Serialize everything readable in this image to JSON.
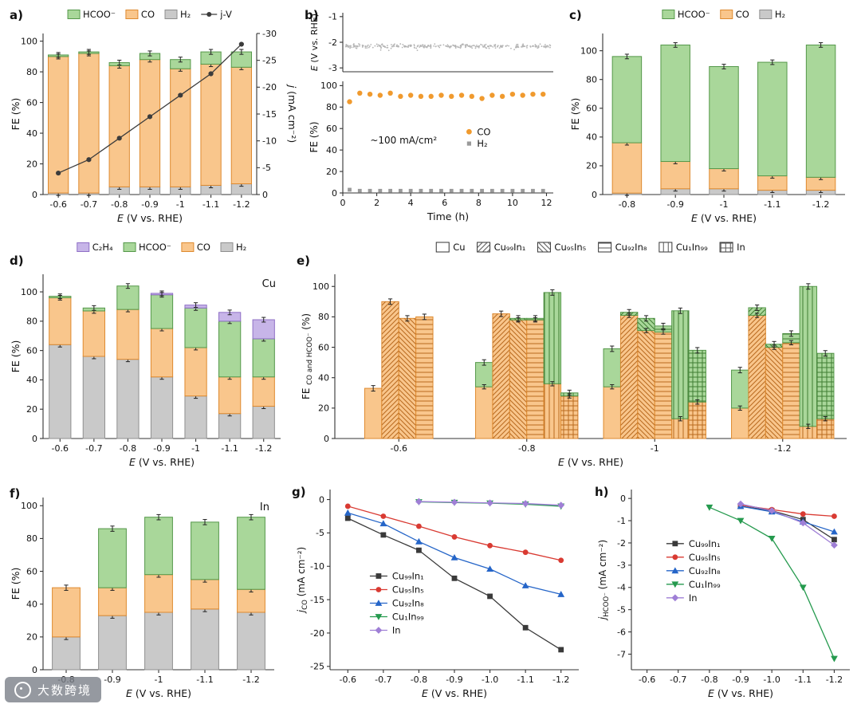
{
  "watermark": {
    "icon": "ring-logo-icon",
    "text": "大数跨境"
  },
  "colors": {
    "hcoo_fill": "#a9d79a",
    "hcoo_stroke": "#55984a",
    "co_fill": "#f9c68c",
    "co_stroke": "#de8a2f",
    "h2_fill": "#c9c9c9",
    "h2_stroke": "#8f8f8f",
    "c2h4_fill": "#c7b5e8",
    "c2h4_stroke": "#8f6fc6",
    "jv": "#3c3c3c",
    "co_dot": "#f09a2e",
    "h2_dot": "#9a9a9a",
    "noise_dot": "#b5b5b5",
    "cat_Cu99In1": "#3a3a3a",
    "cat_Cu95In5": "#d93a32",
    "cat_Cu92In8": "#2565c8",
    "cat_Cu1In99": "#259a4e",
    "cat_In": "#9f7fd6",
    "pat_co": "#b96a1e",
    "pat_hcoo": "#3f7d33",
    "pat_leg": "#555555"
  },
  "chart_data": {
    "a": {
      "label": "a)",
      "type": "bar+line",
      "legend": [
        {
          "key": "hcoo",
          "label": "HCOO⁻"
        },
        {
          "key": "co",
          "label": "CO"
        },
        {
          "key": "h2",
          "label": "H₂"
        },
        {
          "key": "jv",
          "label": "j-V"
        }
      ],
      "categories": [
        "-0.6",
        "-0.7",
        "-0.8",
        "-0.9",
        "-1",
        "-1.1",
        "-1.2"
      ],
      "stacks": [
        {
          "key": "h2",
          "name": "H2",
          "values": [
            1,
            1,
            5,
            5,
            5,
            6,
            7
          ]
        },
        {
          "key": "co",
          "name": "CO",
          "values": [
            89,
            91,
            79,
            83,
            77,
            79,
            76
          ]
        },
        {
          "key": "hcoo",
          "name": "HCOO-",
          "values": [
            1,
            1,
            2,
            4,
            6,
            8,
            10
          ]
        }
      ],
      "line_values": [
        -4,
        -6.5,
        -10.5,
        -14.5,
        -18.5,
        -22.5,
        -28
      ],
      "ylabel": "FE (%)",
      "xlabel_segments": [
        {
          "t": "E",
          "i": 1
        },
        {
          "t": " (V vs. RHE)"
        }
      ],
      "y2label_segments": [
        {
          "t": "j",
          "i": 1
        },
        {
          "t": " (mA cm⁻²)"
        }
      ],
      "yticks": [
        0,
        20,
        40,
        60,
        80,
        100
      ],
      "ymax": 105,
      "y2ticks": [
        0,
        -5,
        -10,
        -15,
        -20,
        -25,
        -30
      ],
      "y2min": -30
    },
    "b": {
      "label": "b)",
      "type": "scatter",
      "top": {
        "ylabel_segments": [
          {
            "t": "E",
            "i": 1
          },
          {
            "t": " (V vs. RHE)"
          }
        ],
        "yticks": [
          -1,
          -2,
          -3
        ],
        "ylim": [
          -0.85,
          -3.15
        ],
        "baseline": -2.15,
        "noise": 0.09,
        "n": 320,
        "seed": 7
      },
      "bottom": {
        "ylabel": "FE (%)",
        "yticks": [
          0,
          20,
          40,
          60,
          80,
          100
        ],
        "ymax": 104,
        "times": [
          0.4,
          1,
          1.6,
          2.2,
          2.8,
          3.4,
          4,
          4.6,
          5.2,
          5.8,
          6.4,
          7,
          7.6,
          8.2,
          8.8,
          9.4,
          10,
          10.6,
          11.2,
          11.8
        ],
        "co": [
          85,
          93,
          92,
          91,
          93,
          90,
          91,
          90,
          90,
          91,
          90,
          91,
          90,
          88,
          91,
          90,
          92,
          91,
          92,
          92
        ],
        "h2": [
          3,
          2,
          2,
          2,
          2,
          2,
          2,
          2,
          2,
          2,
          2,
          2,
          2,
          2,
          2,
          2,
          2,
          2,
          2,
          2
        ]
      },
      "xlabel": "Time (h)",
      "xticks": [
        0,
        2,
        4,
        6,
        8,
        10,
        12
      ],
      "xmax": 12.4,
      "annotation": "~100 mA/cm²",
      "legend": [
        {
          "key": "co",
          "label": "CO"
        },
        {
          "key": "h2",
          "label": "H₂"
        }
      ]
    },
    "c": {
      "label": "c)",
      "type": "bar",
      "legend": [
        {
          "key": "hcoo",
          "label": "HCOO⁻"
        },
        {
          "key": "co",
          "label": "CO"
        },
        {
          "key": "h2",
          "label": "H₂"
        }
      ],
      "categories": [
        "-0.8",
        "-0.9",
        "-1",
        "-1.1",
        "-1.2"
      ],
      "stacks": [
        {
          "key": "h2",
          "name": "H2",
          "values": [
            1,
            4,
            4,
            3,
            3
          ]
        },
        {
          "key": "co",
          "name": "CO",
          "values": [
            35,
            19,
            14,
            10,
            9
          ]
        },
        {
          "key": "hcoo",
          "name": "HCOO-",
          "values": [
            60,
            81,
            71,
            79,
            92
          ]
        }
      ],
      "ylabel": "FE (%)",
      "xlabel_segments": [
        {
          "t": "E",
          "i": 1
        },
        {
          "t": " (V vs. RHE)"
        }
      ],
      "yticks": [
        0,
        20,
        40,
        60,
        80,
        100
      ],
      "ymax": 112
    },
    "d": {
      "label": "d)",
      "type": "bar",
      "corner": "Cu",
      "legend": [
        {
          "key": "c2h4",
          "label": "C₂H₄"
        },
        {
          "key": "hcoo",
          "label": "HCOO⁻"
        },
        {
          "key": "co",
          "label": "CO"
        },
        {
          "key": "h2",
          "label": "H₂"
        }
      ],
      "categories": [
        "-0.6",
        "-0.7",
        "-0.8",
        "-0.9",
        "-1",
        "-1.1",
        "-1.2"
      ],
      "stacks": [
        {
          "key": "h2",
          "name": "H2",
          "values": [
            64,
            56,
            54,
            42,
            29,
            17,
            22
          ]
        },
        {
          "key": "co",
          "name": "CO",
          "values": [
            32,
            31,
            34,
            33,
            33,
            25,
            20
          ]
        },
        {
          "key": "hcoo",
          "name": "HCOO-",
          "values": [
            1,
            2,
            16,
            23,
            27,
            38,
            26
          ]
        },
        {
          "key": "c2h4",
          "name": "C2H4",
          "values": [
            0,
            0,
            0,
            1,
            2,
            6,
            13
          ]
        }
      ],
      "ylabel": "FE (%)",
      "xlabel_segments": [
        {
          "t": "E",
          "i": 1
        },
        {
          "t": " (V vs. RHE)"
        }
      ],
      "yticks": [
        0,
        20,
        40,
        60,
        80,
        100
      ],
      "ymax": 112
    },
    "e": {
      "label": "e)",
      "type": "bar",
      "legend": [
        {
          "pat": "none",
          "label": "Cu"
        },
        {
          "pat": "d1",
          "label": "Cu₉₉In₁"
        },
        {
          "pat": "d2",
          "label": "Cu₉₅In₅"
        },
        {
          "pat": "h",
          "label": "Cu₉₂In₈"
        },
        {
          "pat": "v",
          "label": "Cu₁In₉₉"
        },
        {
          "pat": "grid",
          "label": "In"
        }
      ],
      "categories": [
        "-0.6",
        "-0.8",
        "-1",
        "-1.2"
      ],
      "catalysts": [
        {
          "name": "Cu",
          "pat": "none",
          "co": [
            33,
            34,
            34,
            20
          ],
          "hcoo": [
            0,
            16,
            25,
            25
          ]
        },
        {
          "name": "Cu99In1",
          "pat": "d1",
          "co": [
            90,
            82,
            81,
            81
          ],
          "hcoo": [
            0,
            0,
            2,
            5
          ]
        },
        {
          "name": "Cu95In5",
          "pat": "d2",
          "co": [
            79,
            78,
            71,
            60
          ],
          "hcoo": [
            0,
            1,
            8,
            2
          ]
        },
        {
          "name": "Cu92In8",
          "pat": "h",
          "co": [
            80,
            78,
            70,
            63
          ],
          "hcoo": [
            0,
            1,
            4,
            6
          ]
        },
        {
          "name": "Cu1In99",
          "pat": "v",
          "co": [
            null,
            36,
            13,
            8
          ],
          "hcoo": [
            null,
            60,
            71,
            92
          ]
        },
        {
          "name": "In",
          "pat": "grid",
          "co": [
            null,
            28,
            24,
            13
          ],
          "hcoo": [
            null,
            2,
            34,
            43
          ]
        }
      ],
      "ylabel_segments": [
        {
          "t": "FE "
        },
        {
          "t": "CO and HCOO⁻",
          "s": 1
        },
        {
          "t": " (%)"
        }
      ],
      "xlabel_segments": [
        {
          "t": "E",
          "i": 1
        },
        {
          "t": " (V vs. RHE)"
        }
      ],
      "yticks": [
        0,
        20,
        40,
        60,
        80,
        100
      ],
      "ymax": 108
    },
    "f": {
      "label": "f)",
      "type": "bar",
      "corner": "In",
      "categories": [
        "-0.8",
        "-0.9",
        "-1",
        "-1.1",
        "-1.2"
      ],
      "stacks": [
        {
          "key": "h2",
          "name": "H2",
          "values": [
            20,
            33,
            35,
            37,
            35
          ]
        },
        {
          "key": "co",
          "name": "CO",
          "values": [
            30,
            17,
            23,
            18,
            14
          ]
        },
        {
          "key": "hcoo",
          "name": "HCOO-",
          "values": [
            0,
            36,
            35,
            35,
            44
          ]
        }
      ],
      "ylabel": "FE (%)",
      "xlabel_segments": [
        {
          "t": "E",
          "i": 1
        },
        {
          "t": " (V vs. RHE)"
        }
      ],
      "yticks": [
        0,
        20,
        40,
        60,
        80,
        100
      ],
      "ymax": 105
    },
    "g": {
      "label": "g)",
      "type": "line",
      "ylabel_segments": [
        {
          "t": "j",
          "i": 1
        },
        {
          "t": "CO",
          "s": 1
        },
        {
          "t": " (mA cm⁻²)"
        }
      ],
      "xlabel_segments": [
        {
          "t": "E",
          "i": 1
        },
        {
          "t": " (V vs. RHE)"
        }
      ],
      "xticks": [
        -0.6,
        -0.7,
        -0.8,
        -0.9,
        -1.0,
        -1.1,
        -1.2
      ],
      "yticks": [
        0,
        -5,
        -10,
        -15,
        -20,
        -25
      ],
      "ylim": [
        1.5,
        -25.5
      ],
      "series": [
        {
          "name": "Cu₉₉In₁",
          "color": "cat_Cu99In1",
          "marker": "square",
          "x": [
            -0.6,
            -0.7,
            -0.8,
            -0.9,
            -1.0,
            -1.1,
            -1.2
          ],
          "y": [
            -2.8,
            -5.3,
            -7.6,
            -11.8,
            -14.5,
            -19.2,
            -22.5
          ]
        },
        {
          "name": "Cu₉₅In₅",
          "color": "cat_Cu95In5",
          "marker": "circle",
          "x": [
            -0.6,
            -0.7,
            -0.8,
            -0.9,
            -1.0,
            -1.1,
            -1.2
          ],
          "y": [
            -1.0,
            -2.5,
            -4.0,
            -5.6,
            -6.9,
            -7.9,
            -9.1
          ]
        },
        {
          "name": "Cu₉₂In₈",
          "color": "cat_Cu92In8",
          "marker": "triup",
          "x": [
            -0.6,
            -0.7,
            -0.8,
            -0.9,
            -1.0,
            -1.1,
            -1.2
          ],
          "y": [
            -2.0,
            -3.6,
            -6.3,
            -8.7,
            -10.4,
            -12.9,
            -14.2
          ]
        },
        {
          "name": "Cu₁In₉₉",
          "color": "cat_Cu1In99",
          "marker": "tridown",
          "x": [
            -0.8,
            -0.9,
            -1.0,
            -1.1,
            -1.2
          ],
          "y": [
            -0.35,
            -0.45,
            -0.55,
            -0.7,
            -1.0
          ]
        },
        {
          "name": "In",
          "color": "cat_In",
          "marker": "diamond",
          "x": [
            -0.8,
            -0.9,
            -1.0,
            -1.1,
            -1.2
          ],
          "y": [
            -0.3,
            -0.4,
            -0.5,
            -0.6,
            -0.85
          ]
        }
      ],
      "legend_pos": [
        0.16,
        0.48
      ]
    },
    "h": {
      "label": "h)",
      "type": "line",
      "ylabel_segments": [
        {
          "t": "j",
          "i": 1
        },
        {
          "t": "HCOO⁻",
          "s": 1
        },
        {
          "t": " (mA cm⁻²)"
        }
      ],
      "xlabel_segments": [
        {
          "t": "E",
          "i": 1
        },
        {
          "t": " (V vs. RHE)"
        }
      ],
      "xticks": [
        -0.6,
        -0.7,
        -0.8,
        -0.9,
        -1.0,
        -1.1,
        -1.2
      ],
      "yticks": [
        0,
        -1,
        -2,
        -3,
        -4,
        -5,
        -6,
        -7
      ],
      "ylim": [
        0.4,
        -7.7
      ],
      "series": [
        {
          "name": "Cu₉₉In₁",
          "color": "cat_Cu99In1",
          "marker": "square",
          "x": [
            -0.9,
            -1.0,
            -1.1,
            -1.2
          ],
          "y": [
            -0.35,
            -0.55,
            -0.95,
            -1.85
          ]
        },
        {
          "name": "Cu₉₅In₅",
          "color": "cat_Cu95In5",
          "marker": "circle",
          "x": [
            -0.9,
            -1.0,
            -1.1,
            -1.2
          ],
          "y": [
            -0.3,
            -0.5,
            -0.7,
            -0.8
          ]
        },
        {
          "name": "Cu₉₂In₈",
          "color": "cat_Cu92In8",
          "marker": "triup",
          "x": [
            -0.9,
            -1.0,
            -1.1,
            -1.2
          ],
          "y": [
            -0.35,
            -0.6,
            -1.05,
            -1.5
          ]
        },
        {
          "name": "Cu₁In₉₉",
          "color": "cat_Cu1In99",
          "marker": "tridown",
          "x": [
            -0.8,
            -0.9,
            -1.0,
            -1.1,
            -1.2
          ],
          "y": [
            -0.4,
            -1.0,
            -1.8,
            -4.0,
            -7.2
          ]
        },
        {
          "name": "In",
          "color": "cat_In",
          "marker": "diamond",
          "x": [
            -0.9,
            -1.0,
            -1.1,
            -1.2
          ],
          "y": [
            -0.25,
            -0.55,
            -1.1,
            -2.1
          ]
        }
      ],
      "legend_pos": [
        0.16,
        0.3
      ]
    }
  }
}
